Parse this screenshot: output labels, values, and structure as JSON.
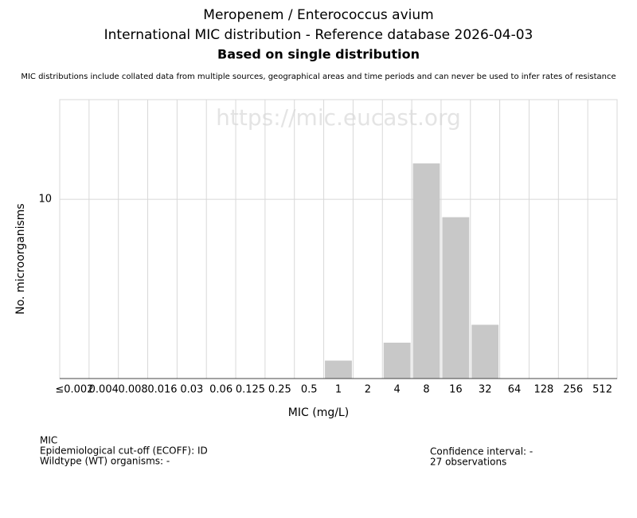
{
  "chart_data": {
    "type": "bar",
    "title": "Meropenem / Enterococcus avium",
    "subtitle": "International MIC distribution - Reference database 2026-04-03",
    "subtitle2": "Based on single distribution",
    "note": "MIC distributions include collated data from multiple sources, geographical areas and time periods and can never be used to infer rates of resistance",
    "watermark": "https://mic.eucast.org",
    "x_label": "MIC (mg/L)",
    "y_label": "No. microorganisms",
    "categories": [
      "≤0.002",
      "0.004",
      "0.008",
      "0.016",
      "0.03",
      "0.06",
      "0.125",
      "0.25",
      "0.5",
      "1",
      "2",
      "4",
      "8",
      "16",
      "32",
      "64",
      "128",
      "256",
      "512"
    ],
    "values": [
      0,
      0,
      0,
      0,
      0,
      0,
      0,
      0,
      0,
      1,
      0,
      2,
      12,
      9,
      3,
      0,
      0,
      0,
      0
    ],
    "color": "#c8c8c8",
    "ylim": [
      0,
      15.56
    ],
    "yticks": [
      10
    ],
    "grid": true,
    "footer_left": [
      "MIC",
      "Epidemiological cut-off (ECOFF): ID",
      "Wildtype (WT) organisms:  -"
    ],
    "footer_right": [
      "Confidence interval: -",
      "27 observations"
    ]
  }
}
